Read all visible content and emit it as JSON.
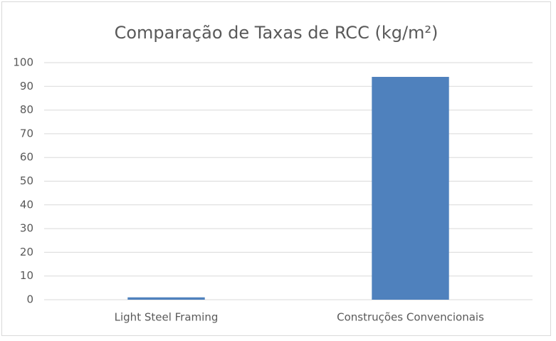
{
  "chart_data": {
    "type": "bar",
    "title": "Comparação de Taxas de RCC (kg/m²)",
    "categories": [
      "Light Steel Framing",
      "Construções Convencionais"
    ],
    "values": [
      1,
      94
    ],
    "color": "#4f81bd",
    "ylim": [
      0,
      100
    ],
    "yticks": [
      0,
      10,
      20,
      30,
      40,
      50,
      60,
      70,
      80,
      90,
      100
    ],
    "grid": true
  }
}
